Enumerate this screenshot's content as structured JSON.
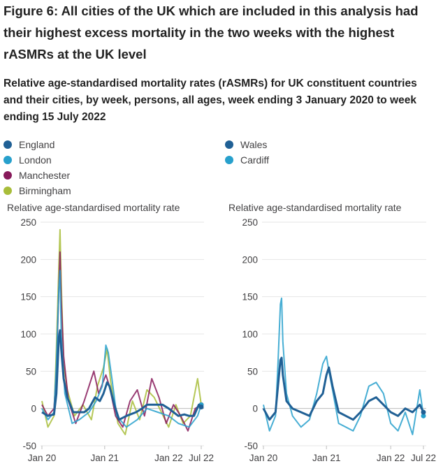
{
  "heading": "Figure 6: All cities of the UK which are included in this analysis had their highest excess mortality in the two weeks with the highest rASMRs at the UK level",
  "subheading": "Relative age-standardised mortality rates (rASMRs) for UK constituent countries and their cities, by week, persons, all ages, week ending 3 January 2020 to week ending 15 July 2022",
  "legend": {
    "left": [
      {
        "label": "England",
        "color": "#206095"
      },
      {
        "label": "London",
        "color": "#27a0cc"
      },
      {
        "label": "Manchester",
        "color": "#871a5b"
      },
      {
        "label": "Birmingham",
        "color": "#a8bd3a"
      }
    ],
    "right": [
      {
        "label": "Wales",
        "color": "#206095"
      },
      {
        "label": "Cardiff",
        "color": "#27a0cc"
      }
    ]
  },
  "chart_data": [
    {
      "type": "line",
      "title": "Relative age-standardised mortality rate",
      "ylabel": "Relative age-standardised mortality rate",
      "ylim": [
        -50,
        250
      ],
      "yticks": [
        250,
        200,
        150,
        100,
        50,
        0,
        -50
      ],
      "xticks": [
        "Jan 20",
        "Jan 21",
        "Jan 22",
        "Jul 22"
      ],
      "xlim": [
        "2020-01-03",
        "2022-07-15"
      ],
      "grid": "horizontal",
      "series": [
        {
          "name": "England",
          "color": "#206095",
          "x": [
            "2020-01-03",
            "2020-02-07",
            "2020-03-13",
            "2020-03-27",
            "2020-04-10",
            "2020-04-17",
            "2020-04-24",
            "2020-05-08",
            "2020-05-29",
            "2020-07-03",
            "2020-09-04",
            "2020-10-02",
            "2020-11-06",
            "2020-12-04",
            "2020-12-25",
            "2021-01-15",
            "2021-01-29",
            "2021-02-26",
            "2021-03-26",
            "2021-05-07",
            "2021-07-02",
            "2021-08-06",
            "2021-09-03",
            "2021-10-01",
            "2021-11-05",
            "2021-12-03",
            "2022-01-07",
            "2022-02-04",
            "2022-03-04",
            "2022-04-08",
            "2022-05-06",
            "2022-06-03",
            "2022-07-01",
            "2022-07-15"
          ],
          "y": [
            -5,
            -10,
            -8,
            20,
            95,
            105,
            80,
            40,
            15,
            -5,
            -5,
            0,
            15,
            10,
            20,
            35,
            30,
            5,
            -15,
            -10,
            -5,
            0,
            5,
            5,
            5,
            5,
            0,
            -5,
            -10,
            -8,
            -10,
            -10,
            5,
            2
          ]
        },
        {
          "name": "London",
          "color": "#27a0cc",
          "x": [
            "2020-01-03",
            "2020-02-07",
            "2020-03-13",
            "2020-03-27",
            "2020-04-10",
            "2020-04-17",
            "2020-04-24",
            "2020-05-15",
            "2020-06-26",
            "2020-08-07",
            "2020-10-02",
            "2020-11-13",
            "2020-12-18",
            "2021-01-08",
            "2021-01-22",
            "2021-02-12",
            "2021-03-12",
            "2021-05-07",
            "2021-07-09",
            "2021-09-03",
            "2021-11-05",
            "2022-01-07",
            "2022-03-04",
            "2022-05-06",
            "2022-06-24",
            "2022-07-15"
          ],
          "y": [
            0,
            -15,
            -5,
            60,
            160,
            185,
            100,
            20,
            -20,
            -15,
            -5,
            10,
            30,
            85,
            75,
            40,
            -10,
            -25,
            -15,
            0,
            -5,
            -10,
            -20,
            -25,
            -10,
            5
          ]
        },
        {
          "name": "Manchester",
          "color": "#871a5b",
          "x": [
            "2020-01-03",
            "2020-02-07",
            "2020-03-13",
            "2020-03-27",
            "2020-04-10",
            "2020-04-17",
            "2020-04-24",
            "2020-05-08",
            "2020-06-05",
            "2020-07-17",
            "2020-09-04",
            "2020-10-09",
            "2020-10-30",
            "2020-11-27",
            "2021-01-08",
            "2021-01-29",
            "2021-03-05",
            "2021-04-16",
            "2021-05-28",
            "2021-07-09",
            "2021-08-20",
            "2021-10-01",
            "2021-11-12",
            "2021-12-24",
            "2022-02-04",
            "2022-03-18",
            "2022-04-29",
            "2022-06-10",
            "2022-07-15"
          ],
          "y": [
            5,
            -10,
            0,
            50,
            160,
            210,
            145,
            70,
            10,
            -20,
            10,
            35,
            50,
            20,
            45,
            30,
            -10,
            -25,
            10,
            25,
            -10,
            40,
            15,
            -20,
            5,
            -10,
            -30,
            0,
            5
          ]
        },
        {
          "name": "Birmingham",
          "color": "#a8bd3a",
          "x": [
            "2020-01-03",
            "2020-02-07",
            "2020-03-13",
            "2020-03-27",
            "2020-04-10",
            "2020-04-17",
            "2020-04-24",
            "2020-05-08",
            "2020-05-29",
            "2020-07-10",
            "2020-08-28",
            "2020-10-16",
            "2020-11-20",
            "2020-12-25",
            "2021-01-15",
            "2021-02-05",
            "2021-03-19",
            "2021-04-30",
            "2021-06-11",
            "2021-07-23",
            "2021-09-03",
            "2021-10-15",
            "2021-11-26",
            "2022-01-07",
            "2022-02-18",
            "2022-04-01",
            "2022-05-13",
            "2022-06-24",
            "2022-07-15"
          ],
          "y": [
            10,
            -25,
            -10,
            80,
            190,
            240,
            170,
            60,
            25,
            -10,
            5,
            -15,
            30,
            55,
            80,
            35,
            -20,
            -35,
            10,
            -15,
            25,
            15,
            -5,
            -25,
            5,
            -20,
            -10,
            40,
            5
          ]
        }
      ]
    },
    {
      "type": "line",
      "title": "Relative age-standardised mortality rate",
      "ylabel": "Relative age-standardised mortality rate",
      "ylim": [
        -50,
        250
      ],
      "yticks": [
        250,
        200,
        150,
        100,
        50,
        0,
        -50
      ],
      "xticks": [
        "Jan 20",
        "Jan 21",
        "Jan 22",
        "Jul 22"
      ],
      "xlim": [
        "2020-01-03",
        "2022-07-15"
      ],
      "grid": "horizontal",
      "series": [
        {
          "name": "Wales",
          "color": "#206095",
          "x": [
            "2020-01-03",
            "2020-02-07",
            "2020-03-13",
            "2020-03-27",
            "2020-04-10",
            "2020-04-17",
            "2020-04-24",
            "2020-05-15",
            "2020-06-19",
            "2020-08-07",
            "2020-09-25",
            "2020-11-06",
            "2020-12-11",
            "2021-01-01",
            "2021-01-15",
            "2021-02-05",
            "2021-03-12",
            "2021-04-23",
            "2021-06-04",
            "2021-07-16",
            "2021-09-03",
            "2021-10-15",
            "2021-11-26",
            "2022-01-07",
            "2022-02-18",
            "2022-04-01",
            "2022-05-13",
            "2022-06-24",
            "2022-07-15"
          ],
          "y": [
            0,
            -15,
            -5,
            30,
            65,
            68,
            45,
            10,
            0,
            -5,
            -10,
            10,
            20,
            45,
            55,
            30,
            -5,
            -10,
            -15,
            -5,
            10,
            15,
            5,
            -5,
            -10,
            0,
            -5,
            5,
            -5
          ]
        },
        {
          "name": "Cardiff",
          "color": "#27a0cc",
          "x": [
            "2020-01-03",
            "2020-02-07",
            "2020-03-13",
            "2020-03-27",
            "2020-04-10",
            "2020-04-17",
            "2020-04-24",
            "2020-05-15",
            "2020-06-19",
            "2020-08-07",
            "2020-09-25",
            "2020-11-06",
            "2020-12-11",
            "2021-01-01",
            "2021-01-15",
            "2021-02-05",
            "2021-03-12",
            "2021-04-23",
            "2021-06-04",
            "2021-07-16",
            "2021-09-03",
            "2021-10-15",
            "2021-11-26",
            "2022-01-07",
            "2022-02-18",
            "2022-04-01",
            "2022-05-13",
            "2022-06-24",
            "2022-07-15"
          ],
          "y": [
            5,
            -30,
            -10,
            60,
            140,
            148,
            90,
            20,
            -10,
            -25,
            -15,
            20,
            60,
            70,
            50,
            25,
            -20,
            -25,
            -30,
            -10,
            30,
            35,
            20,
            -20,
            -30,
            -5,
            -35,
            25,
            -10
          ]
        }
      ]
    }
  ]
}
